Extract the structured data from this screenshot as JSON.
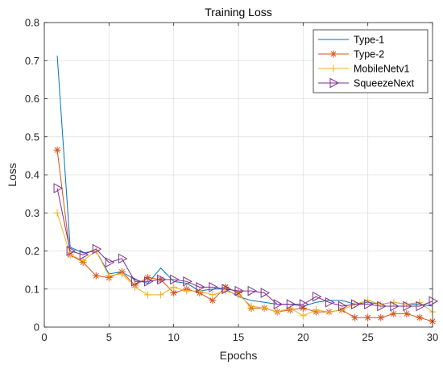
{
  "chart_data": {
    "type": "line",
    "title": "Training Loss",
    "xlabel": "Epochs",
    "ylabel": "Loss",
    "xlim": [
      0,
      30
    ],
    "ylim": [
      0,
      0.8
    ],
    "xticks": [
      0,
      5,
      10,
      15,
      20,
      25,
      30
    ],
    "yticks": [
      0,
      0.1,
      0.2,
      0.3,
      0.4,
      0.5,
      0.6,
      0.7,
      0.8
    ],
    "grid": true,
    "legend_position": "top-right",
    "x": [
      1,
      2,
      3,
      4,
      5,
      6,
      7,
      8,
      9,
      10,
      11,
      12,
      13,
      14,
      15,
      16,
      17,
      18,
      19,
      20,
      21,
      22,
      23,
      24,
      25,
      26,
      27,
      28,
      29,
      30
    ],
    "series": [
      {
        "name": "Type-1",
        "color": "#0072bd",
        "marker": "none",
        "values": [
          0.713,
          0.21,
          0.195,
          0.2,
          0.14,
          0.145,
          0.125,
          0.115,
          0.155,
          0.12,
          0.115,
          0.095,
          0.1,
          0.1,
          0.08,
          0.07,
          0.065,
          0.06,
          0.06,
          0.055,
          0.065,
          0.07,
          0.07,
          0.06,
          0.065,
          0.06,
          0.065,
          0.06,
          0.06,
          0.055
        ]
      },
      {
        "name": "Type-2",
        "color": "#d95319",
        "marker": "asterisk",
        "values": [
          0.465,
          0.19,
          0.17,
          0.135,
          0.13,
          0.145,
          0.11,
          0.13,
          0.125,
          0.09,
          0.1,
          0.09,
          0.07,
          0.105,
          0.09,
          0.05,
          0.05,
          0.04,
          0.045,
          0.05,
          0.04,
          0.04,
          0.045,
          0.025,
          0.025,
          0.025,
          0.035,
          0.035,
          0.025,
          0.015
        ]
      },
      {
        "name": "MobileNetv1",
        "color": "#edb120",
        "marker": "plus",
        "values": [
          0.3,
          0.19,
          0.175,
          0.2,
          0.135,
          0.14,
          0.105,
          0.085,
          0.085,
          0.105,
          0.095,
          0.095,
          0.085,
          0.095,
          0.085,
          0.055,
          0.05,
          0.04,
          0.05,
          0.03,
          0.045,
          0.04,
          0.045,
          0.06,
          0.07,
          0.06,
          0.065,
          0.06,
          0.065,
          0.04
        ]
      },
      {
        "name": "SqueezeNext",
        "color": "#7e2f8e",
        "marker": "triangle-right",
        "values": [
          0.365,
          0.2,
          0.19,
          0.205,
          0.17,
          0.18,
          0.12,
          0.12,
          0.125,
          0.125,
          0.12,
          0.105,
          0.105,
          0.1,
          0.095,
          0.095,
          0.09,
          0.06,
          0.06,
          0.06,
          0.08,
          0.065,
          0.055,
          0.06,
          0.06,
          0.055,
          0.055,
          0.055,
          0.055,
          0.068
        ]
      }
    ]
  }
}
